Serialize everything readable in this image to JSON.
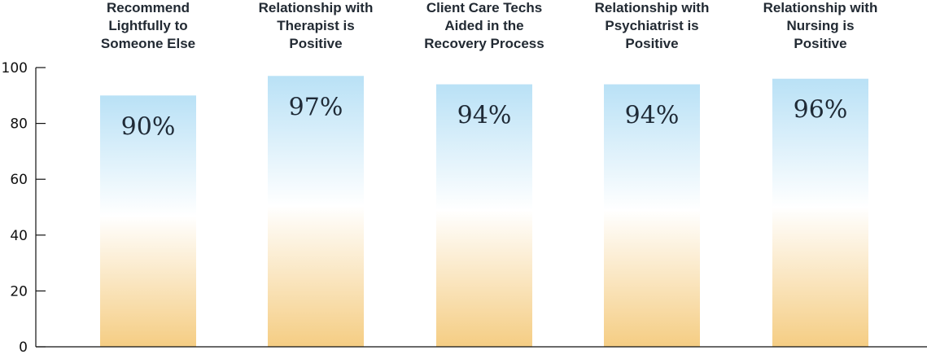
{
  "chart_data": {
    "type": "bar",
    "categories": [
      [
        "Recommend",
        "Lightfully to",
        "Someone Else"
      ],
      [
        "Relationship with",
        "Therapist is",
        "Positive"
      ],
      [
        "Client Care Techs",
        "Aided in the",
        "Recovery Process"
      ],
      [
        "Relationship with",
        "Psychiatrist is",
        "Positive"
      ],
      [
        "Relationship with",
        "Nursing is",
        "Positive"
      ]
    ],
    "values": [
      90,
      97,
      94,
      94,
      96
    ],
    "value_labels": [
      "90%",
      "97%",
      "94%",
      "94%",
      "96%"
    ],
    "ylim": [
      0,
      100
    ],
    "yticks": [
      "0",
      "20",
      "40",
      "60",
      "80",
      "100"
    ],
    "ytick_values": [
      0,
      20,
      40,
      60,
      80,
      100
    ],
    "grid": false,
    "legend": "none",
    "colors": {
      "bar_top": "#b9e1f6",
      "bar_middle": "#ffffff",
      "bar_bottom": "#f5cd83",
      "axis": "#111111",
      "text": "#222a33"
    }
  }
}
